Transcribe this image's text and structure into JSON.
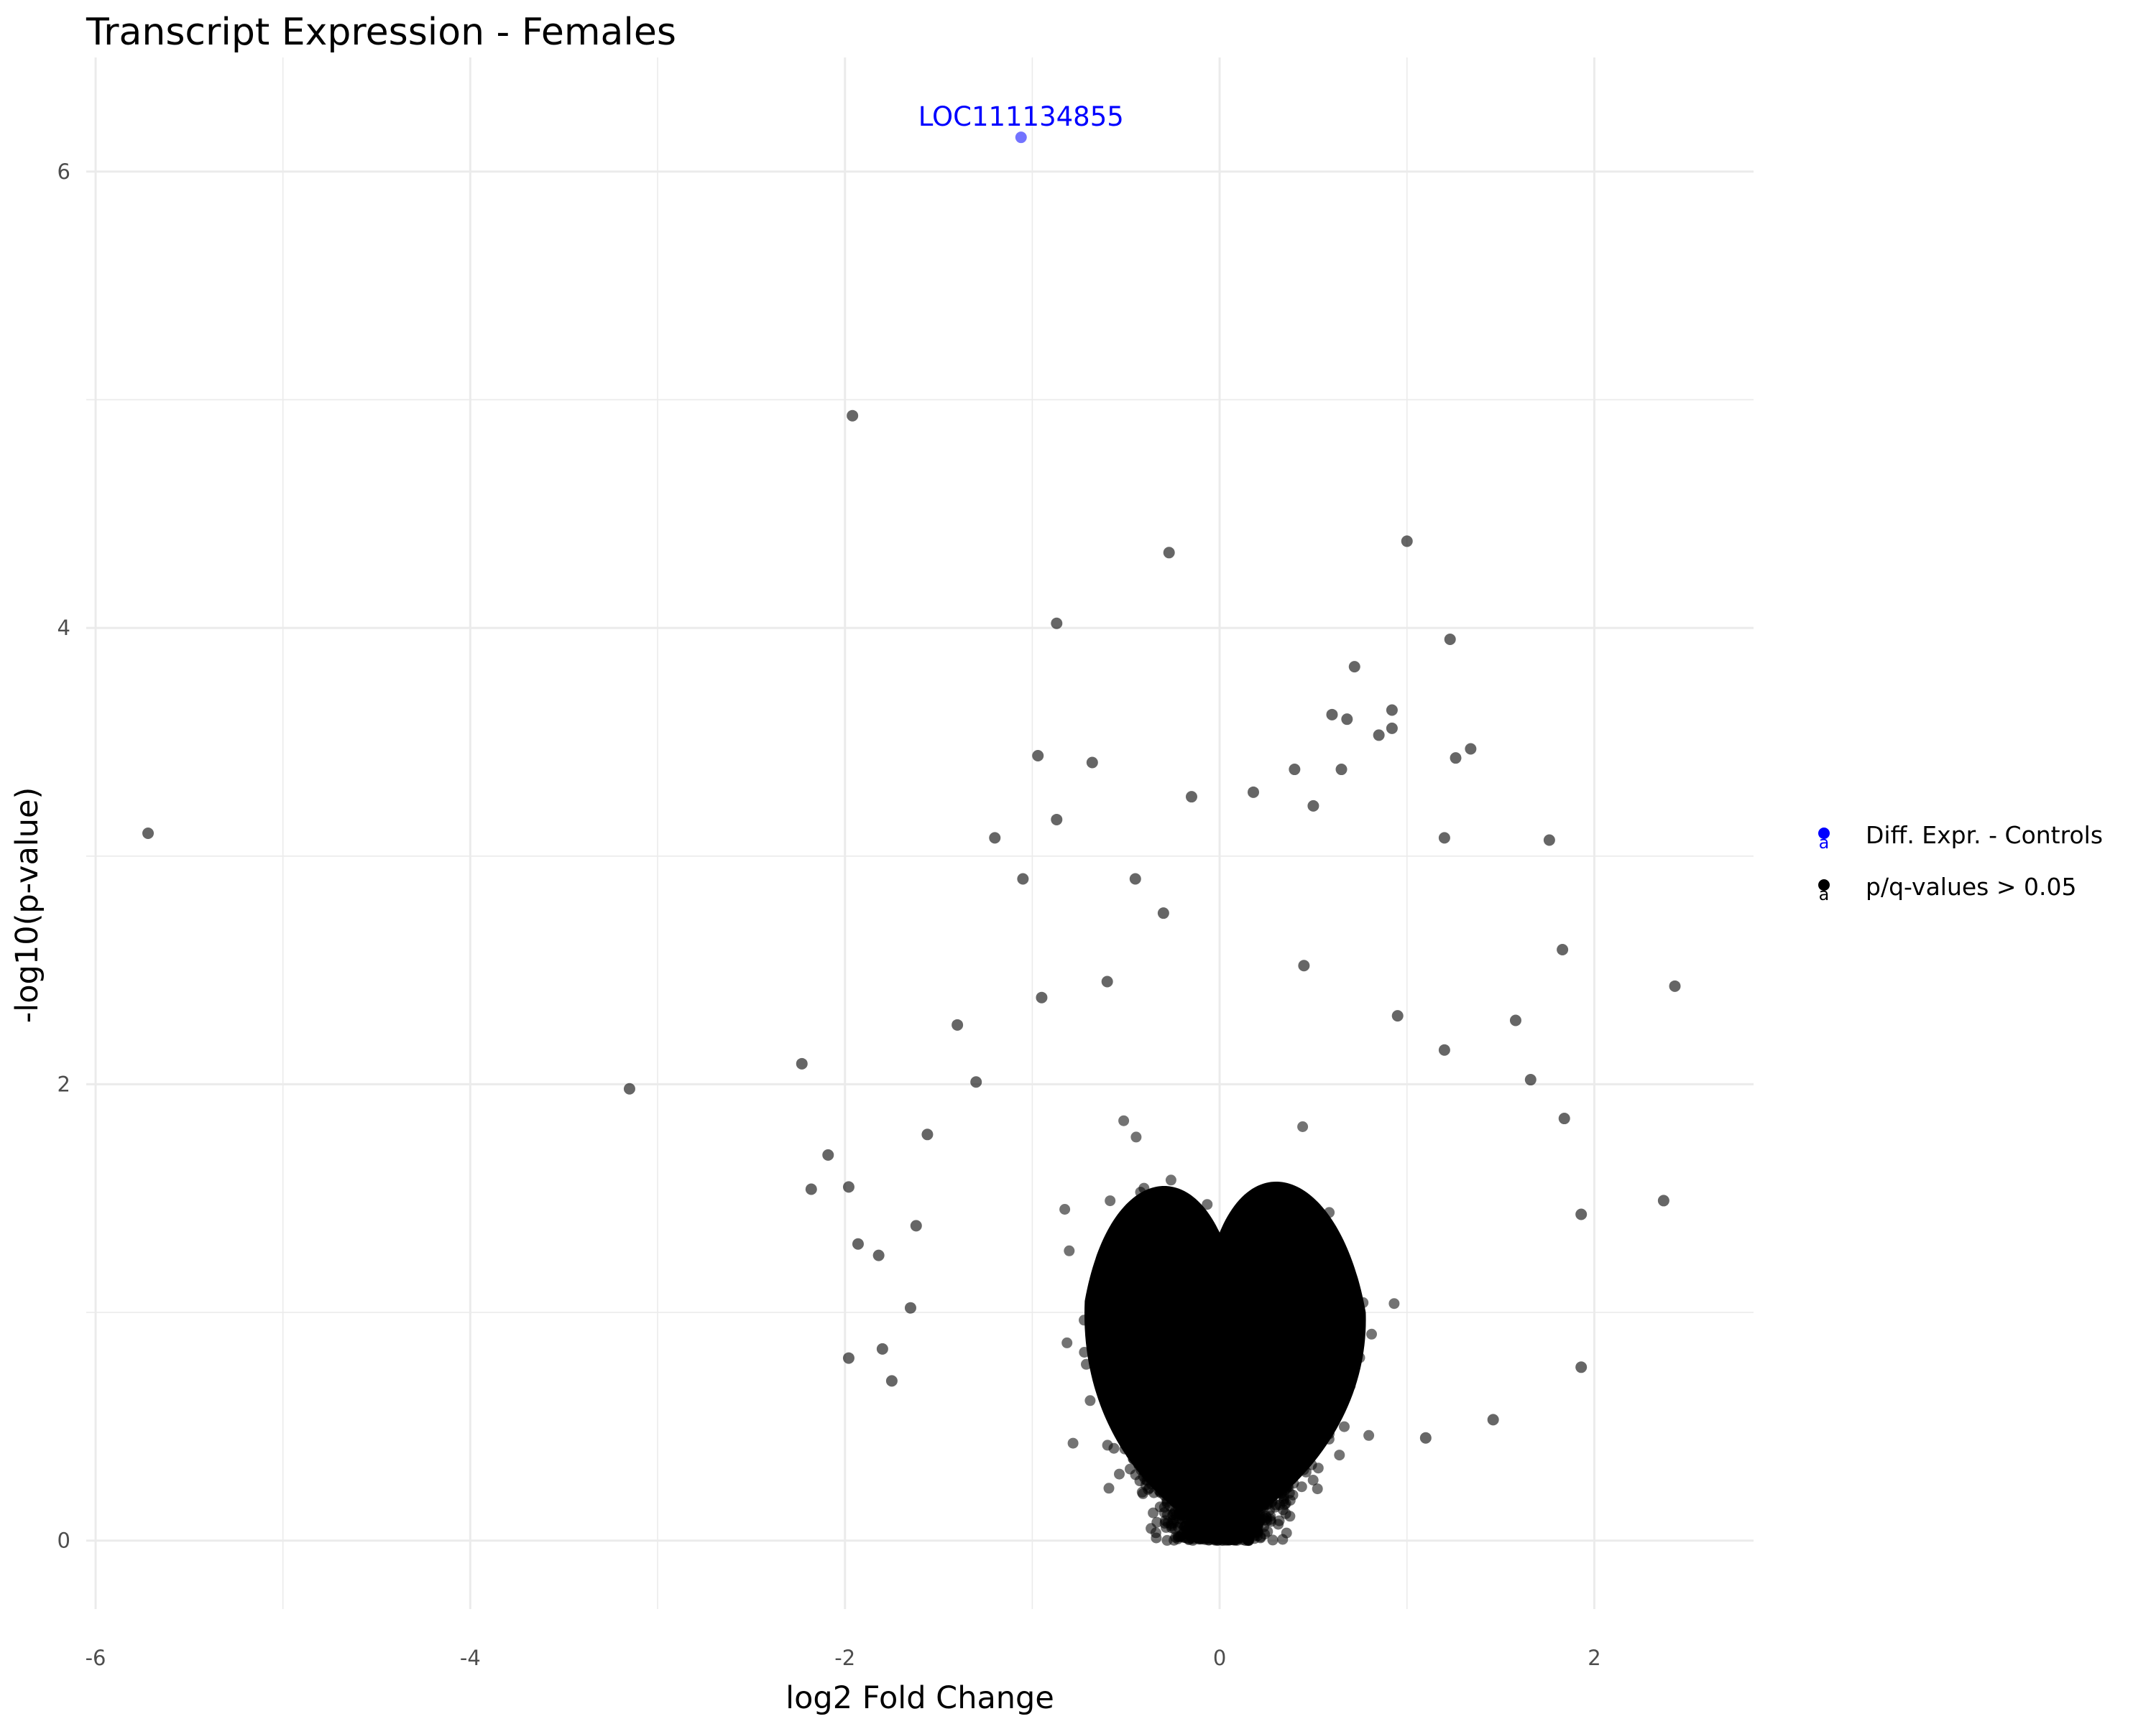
{
  "chart_data": {
    "type": "scatter",
    "title": "Transcript Expression - Females",
    "xlabel": "log2 Fold Change",
    "ylabel": "-log10(p-value)",
    "xlim": [
      -6.05,
      2.85
    ],
    "ylim": [
      -0.3,
      6.5
    ],
    "x_ticks": [
      -6,
      -4,
      -2,
      0,
      2
    ],
    "y_ticks": [
      0,
      2,
      4,
      6
    ],
    "x_tick_labels": [
      "-6",
      "-4",
      "-2",
      "0",
      "2"
    ],
    "y_tick_labels": [
      "0",
      "2",
      "4",
      "6"
    ],
    "grid": true,
    "legend": {
      "position": "right",
      "entries": [
        {
          "label": "Diff. Expr. - Controls",
          "color": "#0000ff"
        },
        {
          "label": "p/q-values > 0.05",
          "color": "#000000"
        }
      ]
    },
    "series": [
      {
        "name": "Diff. Expr. - Controls",
        "color": "#0000ff",
        "points": [
          {
            "x": -1.06,
            "y": 6.15,
            "label": "LOC111134855"
          }
        ]
      },
      {
        "name": "p/q-values > 0.05",
        "color": "#000000",
        "note_dense_cloud": "volcano-shaped dense cloud of several thousand transcripts centered at x = 0; outlying points listed",
        "points": [
          {
            "x": -5.72,
            "y": 3.1
          },
          {
            "x": -3.15,
            "y": 1.98
          },
          {
            "x": -2.23,
            "y": 2.09
          },
          {
            "x": -2.09,
            "y": 1.69
          },
          {
            "x": -2.18,
            "y": 1.54
          },
          {
            "x": -1.96,
            "y": 4.93
          },
          {
            "x": -1.98,
            "y": 1.55
          },
          {
            "x": -1.93,
            "y": 1.3
          },
          {
            "x": -1.98,
            "y": 0.8
          },
          {
            "x": -1.8,
            "y": 0.84
          },
          {
            "x": -1.75,
            "y": 0.7
          },
          {
            "x": -1.56,
            "y": 1.78
          },
          {
            "x": -1.4,
            "y": 2.26
          },
          {
            "x": -1.3,
            "y": 2.01
          },
          {
            "x": -1.2,
            "y": 3.08
          },
          {
            "x": -1.05,
            "y": 2.9
          },
          {
            "x": -0.97,
            "y": 3.44
          },
          {
            "x": -0.87,
            "y": 4.02
          },
          {
            "x": -0.87,
            "y": 3.16
          },
          {
            "x": -0.68,
            "y": 3.41
          },
          {
            "x": -0.27,
            "y": 4.33
          },
          {
            "x": -0.15,
            "y": 3.26
          },
          {
            "x": 0.18,
            "y": 3.28
          },
          {
            "x": 0.4,
            "y": 3.38
          },
          {
            "x": 0.5,
            "y": 3.22
          },
          {
            "x": 0.6,
            "y": 3.62
          },
          {
            "x": 0.72,
            "y": 3.83
          },
          {
            "x": 0.68,
            "y": 3.6
          },
          {
            "x": 0.65,
            "y": 3.38
          },
          {
            "x": 0.85,
            "y": 3.53
          },
          {
            "x": 0.92,
            "y": 3.64
          },
          {
            "x": 0.92,
            "y": 3.56
          },
          {
            "x": 1.0,
            "y": 4.38
          },
          {
            "x": 1.23,
            "y": 3.95
          },
          {
            "x": 1.26,
            "y": 3.43
          },
          {
            "x": 1.34,
            "y": 3.47
          },
          {
            "x": 1.2,
            "y": 3.08
          },
          {
            "x": 1.76,
            "y": 3.07
          },
          {
            "x": 1.83,
            "y": 2.59
          },
          {
            "x": 1.58,
            "y": 2.28
          },
          {
            "x": 1.66,
            "y": 2.02
          },
          {
            "x": 1.84,
            "y": 1.85
          },
          {
            "x": 1.93,
            "y": 1.43
          },
          {
            "x": 1.93,
            "y": 0.76
          },
          {
            "x": 2.37,
            "y": 1.49
          },
          {
            "x": 2.43,
            "y": 2.43
          },
          {
            "x": 1.46,
            "y": 0.53
          },
          {
            "x": 1.1,
            "y": 0.45
          },
          {
            "x": -0.45,
            "y": 2.9
          },
          {
            "x": -0.3,
            "y": 2.75
          },
          {
            "x": 0.45,
            "y": 2.52
          },
          {
            "x": -0.95,
            "y": 2.38
          },
          {
            "x": -0.6,
            "y": 2.45
          },
          {
            "x": 0.95,
            "y": 2.3
          },
          {
            "x": 1.2,
            "y": 2.15
          },
          {
            "x": -1.65,
            "y": 1.02
          },
          {
            "x": -1.82,
            "y": 1.25
          },
          {
            "x": -1.62,
            "y": 1.38
          }
        ]
      }
    ]
  },
  "colors": {
    "gridline": "#ebebeb",
    "background": "#ffffff",
    "highlight": "#0000ff",
    "point": "#000000"
  }
}
